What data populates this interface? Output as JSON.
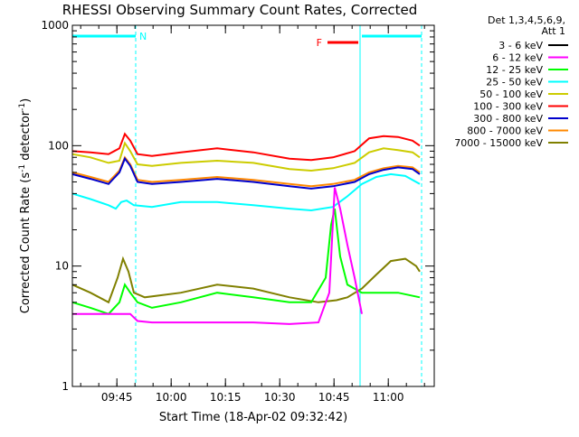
{
  "chart_data": {
    "type": "line",
    "title": "RHESSI Observing Summary Count Rates, Corrected",
    "xlabel": "Start Time (18-Apr-02 09:32:42)",
    "ylabel_main": "Corrected Count Rate (s",
    "ylabel_sup1": "-1",
    "ylabel_mid": " detector",
    "ylabel_sup2": "-1",
    "ylabel_end": ")",
    "yscale": "log",
    "ylim": [
      1,
      1000
    ],
    "xlim_minutes": [
      0,
      100
    ],
    "yticks": [
      "1",
      "10",
      "100",
      "1000"
    ],
    "xticks": [
      {
        "label": "09:45",
        "minutes": 12.3
      },
      {
        "label": "10:00",
        "minutes": 27.3
      },
      {
        "label": "10:15",
        "minutes": 42.3
      },
      {
        "label": "10:30",
        "minutes": 57.3
      },
      {
        "label": "10:45",
        "minutes": 72.3
      },
      {
        "label": "11:00",
        "minutes": 87.3
      }
    ],
    "legend_header": [
      "Det 1,3,4,5,6,9,",
      "Att 1"
    ],
    "legend": [
      {
        "label": "3 - 6 keV",
        "color": "#000000"
      },
      {
        "label": "6 - 12 keV",
        "color": "#ff00ff"
      },
      {
        "label": "12 - 25 keV",
        "color": "#00ff00"
      },
      {
        "label": "25 - 50 keV",
        "color": "#00ffff"
      },
      {
        "label": "50 - 100 keV",
        "color": "#cccc00"
      },
      {
        "label": "100 - 300 keV",
        "color": "#ff0000"
      },
      {
        "label": "300 - 800 keV",
        "color": "#0000cc"
      },
      {
        "label": "800 - 7000 keV",
        "color": "#ff8800"
      },
      {
        "label": "7000 - 15000 keV",
        "color": "#808000"
      }
    ],
    "annotations": [
      {
        "label": "N",
        "color": "#00ffff",
        "start_minutes": 0,
        "end_minutes": 17.5
      },
      {
        "label": "F",
        "color": "#ff0000",
        "start_minutes": 70.5,
        "end_minutes": 79
      }
    ],
    "shading_boundaries_minutes": [
      0,
      17.5,
      79.5,
      96.5
    ],
    "series": [
      {
        "key": "red",
        "color": "#ff0000",
        "x": [
          0,
          5,
          10,
          13,
          14.5,
          16,
          18,
          22,
          30,
          40,
          50,
          60,
          66,
          72,
          78,
          82,
          86,
          90,
          94,
          96
        ],
        "y": [
          90,
          88,
          85,
          95,
          125,
          110,
          85,
          82,
          88,
          95,
          88,
          78,
          76,
          80,
          90,
          115,
          120,
          118,
          110,
          100
        ]
      },
      {
        "key": "yellow",
        "color": "#cccc00",
        "x": [
          0,
          5,
          10,
          13,
          14.5,
          16,
          18,
          22,
          30,
          40,
          50,
          60,
          66,
          72,
          78,
          82,
          86,
          90,
          94,
          96
        ],
        "y": [
          85,
          80,
          72,
          75,
          105,
          90,
          70,
          68,
          72,
          75,
          72,
          64,
          62,
          65,
          72,
          88,
          95,
          92,
          88,
          80
        ]
      },
      {
        "key": "orange",
        "color": "#ff8800",
        "x": [
          0,
          5,
          10,
          13,
          14.5,
          16,
          18,
          22,
          30,
          40,
          50,
          60,
          66,
          72,
          78,
          82,
          86,
          90,
          94,
          96
        ],
        "y": [
          60,
          55,
          50,
          62,
          80,
          70,
          52,
          50,
          52,
          55,
          52,
          48,
          46,
          48,
          52,
          60,
          65,
          68,
          66,
          60
        ]
      },
      {
        "key": "blue",
        "color": "#0000cc",
        "x": [
          0,
          5,
          10,
          13,
          14.5,
          16,
          18,
          22,
          30,
          40,
          50,
          60,
          66,
          72,
          78,
          82,
          86,
          90,
          94,
          96
        ],
        "y": [
          58,
          53,
          48,
          60,
          78,
          68,
          50,
          48,
          50,
          53,
          50,
          46,
          44,
          46,
          50,
          58,
          63,
          66,
          64,
          58
        ]
      },
      {
        "key": "cyan",
        "color": "#00ffff",
        "x": [
          0,
          5,
          10,
          12,
          13.5,
          15,
          17,
          22,
          30,
          40,
          50,
          60,
          66,
          72,
          76,
          80,
          84,
          88,
          92,
          96
        ],
        "y": [
          40,
          36,
          32,
          30,
          34,
          35,
          32,
          31,
          34,
          34,
          32,
          30,
          29,
          31,
          38,
          48,
          55,
          58,
          56,
          48
        ]
      },
      {
        "key": "olive",
        "color": "#808000",
        "x": [
          0,
          5,
          10,
          12.5,
          14,
          15.5,
          17,
          20,
          30,
          40,
          50,
          60,
          68,
          73,
          76,
          80,
          84,
          88,
          92,
          95,
          96
        ],
        "y": [
          7,
          6,
          5,
          8,
          11.5,
          9,
          6,
          5.5,
          6,
          7,
          6.5,
          5.5,
          5,
          5.2,
          5.5,
          6.5,
          8.5,
          11,
          11.5,
          10,
          9
        ]
      },
      {
        "key": "green",
        "color": "#00ff00",
        "x": [
          0,
          5,
          10,
          13,
          14.5,
          16,
          18,
          22,
          30,
          40,
          50,
          60,
          66,
          70,
          71.5,
          72.5,
          74,
          76,
          80,
          85,
          90,
          96
        ],
        "y": [
          5,
          4.5,
          4,
          5,
          7,
          6,
          5,
          4.5,
          5,
          6,
          5.5,
          5,
          5,
          8,
          22,
          30,
          12,
          7,
          6,
          6,
          6,
          5.5
        ]
      },
      {
        "key": "magenta",
        "color": "#ff00ff",
        "x": [
          0,
          5,
          14,
          16,
          18,
          22,
          30,
          40,
          50,
          60,
          68,
          71,
          72.5,
          74,
          76,
          78,
          80
        ],
        "y": [
          4,
          4,
          4,
          4,
          3.5,
          3.4,
          3.4,
          3.4,
          3.4,
          3.3,
          3.4,
          6,
          45,
          30,
          15,
          8,
          4
        ]
      }
    ]
  }
}
